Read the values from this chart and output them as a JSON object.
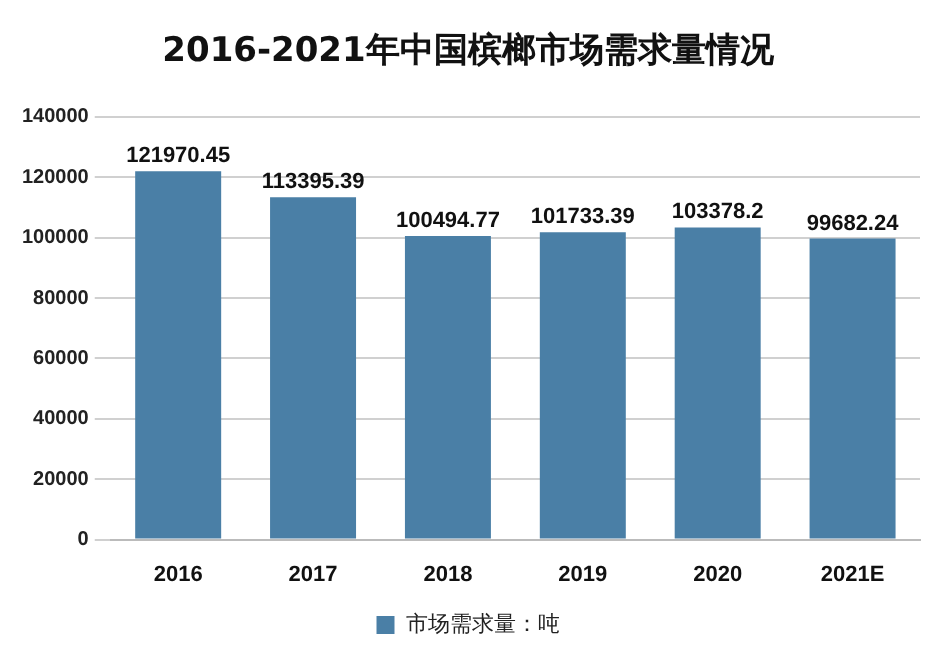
{
  "chart_data": {
    "type": "bar",
    "title": "2016-2021年中国槟榔市场需求量情况",
    "categories": [
      "2016",
      "2017",
      "2018",
      "2019",
      "2020",
      "2021E"
    ],
    "series": [
      {
        "name": "市场需求量：吨",
        "color": "#4a7fa6",
        "values": [
          121970.45,
          113395.39,
          100494.77,
          101733.39,
          103378.2,
          99682.24
        ]
      }
    ],
    "ylim": [
      0,
      140000
    ],
    "yticks": [
      0,
      20000,
      40000,
      60000,
      80000,
      100000,
      120000,
      140000
    ],
    "grid": "y",
    "legend": "bottom",
    "data_labels": true
  }
}
